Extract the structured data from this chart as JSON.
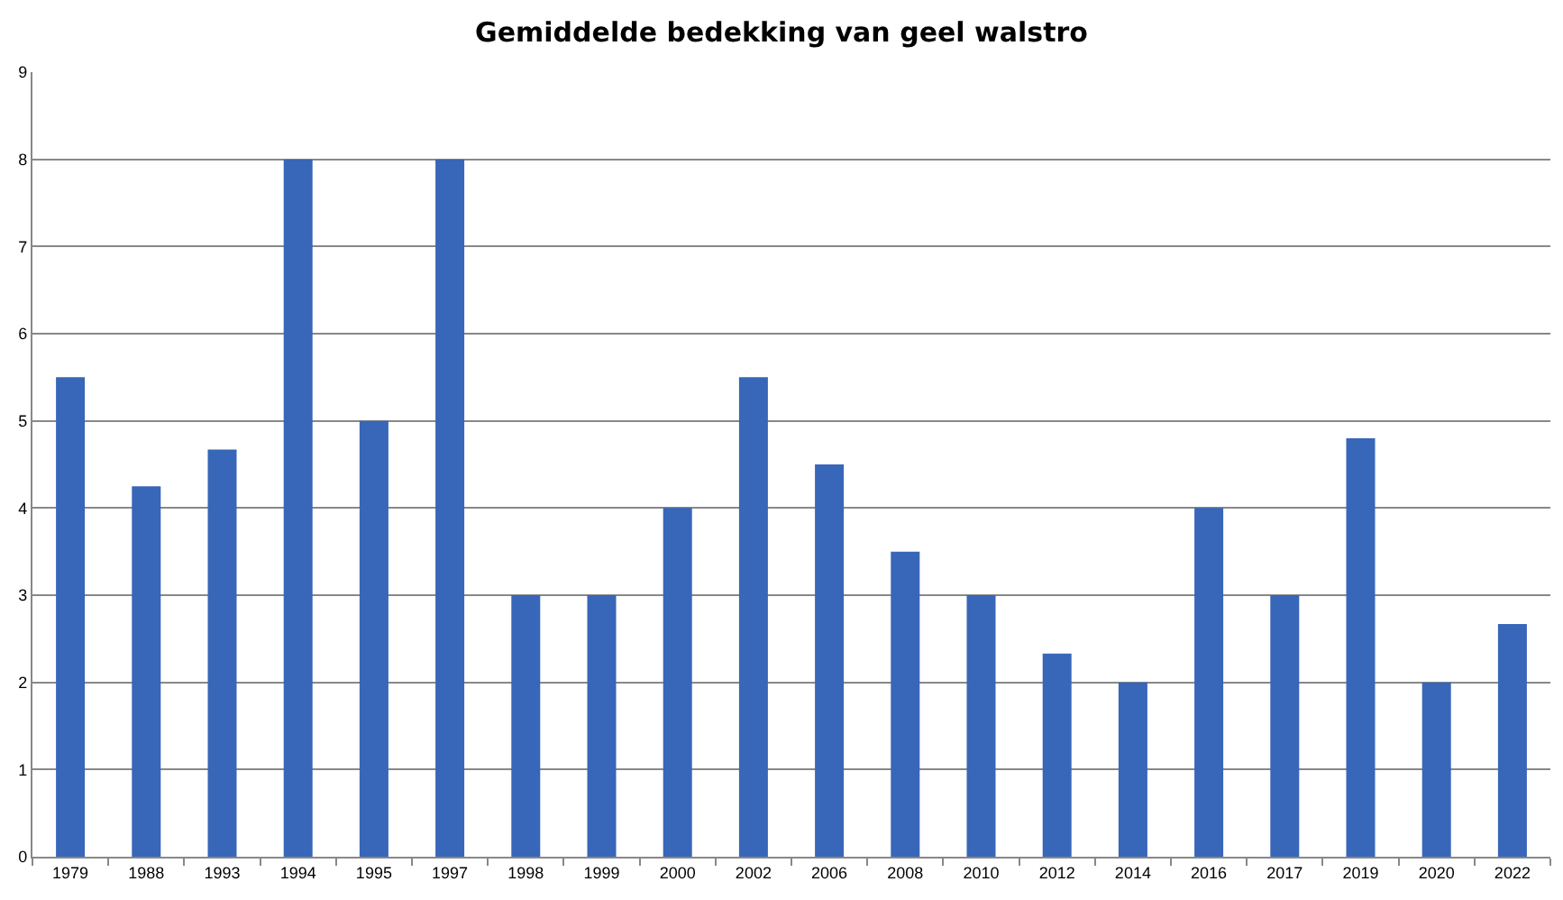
{
  "chart_data": {
    "type": "bar",
    "title": "Gemiddelde bedekking van geel walstro",
    "categories": [
      "1979",
      "1988",
      "1993",
      "1994",
      "1995",
      "1997",
      "1998",
      "1999",
      "2000",
      "2002",
      "2006",
      "2008",
      "2010",
      "2012",
      "2014",
      "2016",
      "2017",
      "2019",
      "2020",
      "2022"
    ],
    "values": [
      5.5,
      4.25,
      4.67,
      8,
      5,
      8,
      3,
      3,
      4,
      5.5,
      4.5,
      3.5,
      3,
      2.33,
      2,
      4,
      3,
      4.8,
      2,
      2.67
    ],
    "color": "#3866b8",
    "ylim": [
      0,
      9
    ],
    "yticks": [
      0,
      1,
      2,
      3,
      4,
      5,
      6,
      7,
      8,
      9
    ],
    "grid": "y"
  }
}
